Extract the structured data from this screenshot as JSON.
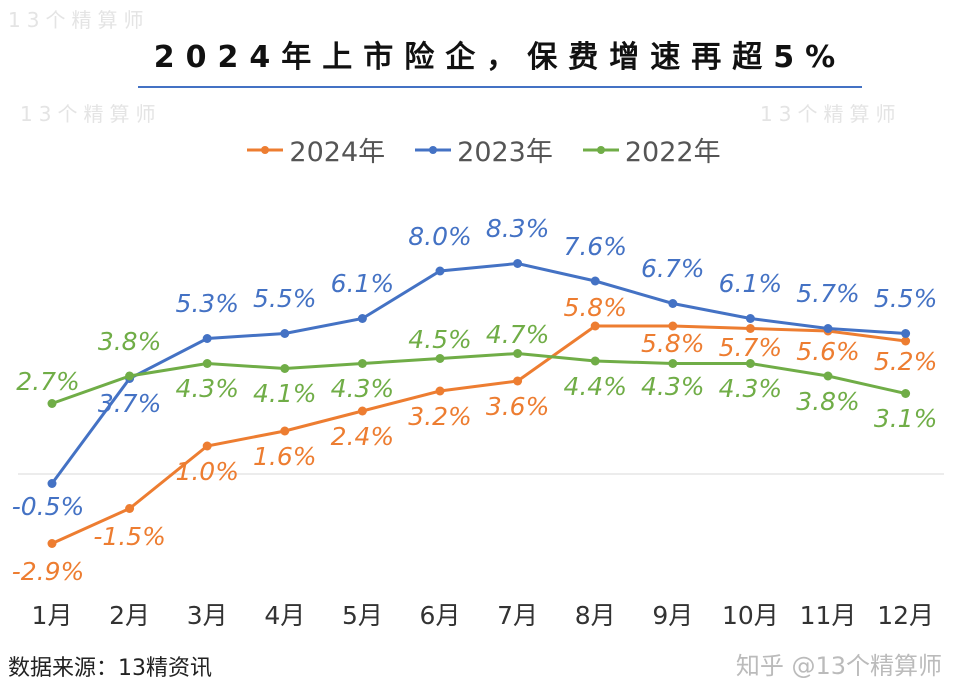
{
  "title": "2024年上市险企，保费增速再超5%",
  "source": "数据来源：13精资讯",
  "credit": "知乎 @13个精算师",
  "watermark": "13个精算师",
  "chart_data": {
    "type": "line",
    "categories": [
      "1月",
      "2月",
      "3月",
      "4月",
      "5月",
      "6月",
      "7月",
      "8月",
      "9月",
      "10月",
      "11月",
      "12月"
    ],
    "series": [
      {
        "name": "2024年",
        "color": "#ed7d31",
        "values": [
          -2.9,
          -1.5,
          1.0,
          1.6,
          2.4,
          3.2,
          3.6,
          5.8,
          5.8,
          5.7,
          5.6,
          5.2
        ],
        "labels": [
          "-2.9%",
          "-1.5%",
          "1.0%",
          "1.6%",
          "2.4%",
          "3.2%",
          "3.6%",
          "5.8%",
          "5.8%",
          "5.7%",
          "5.6%",
          "5.2%"
        ]
      },
      {
        "name": "2023年",
        "color": "#4472c4",
        "values": [
          -0.5,
          3.7,
          5.3,
          5.5,
          6.1,
          8.0,
          8.3,
          7.6,
          6.7,
          6.1,
          5.7,
          5.5
        ],
        "labels": [
          "-0.5%",
          "3.7%",
          "5.3%",
          "5.5%",
          "6.1%",
          "8.0%",
          "8.3%",
          "7.6%",
          "6.7%",
          "6.1%",
          "5.7%",
          "5.5%"
        ]
      },
      {
        "name": "2022年",
        "color": "#70ad47",
        "values": [
          2.7,
          3.8,
          4.3,
          4.1,
          4.3,
          4.5,
          4.7,
          4.4,
          4.3,
          4.3,
          3.8,
          3.1
        ],
        "labels": [
          "2.7%",
          "3.8%",
          "4.3%",
          "4.1%",
          "4.3%",
          "4.5%",
          "4.7%",
          "4.4%",
          "4.3%",
          "4.3%",
          "3.8%",
          "3.1%"
        ]
      }
    ],
    "legend": "top",
    "grid": false
  }
}
